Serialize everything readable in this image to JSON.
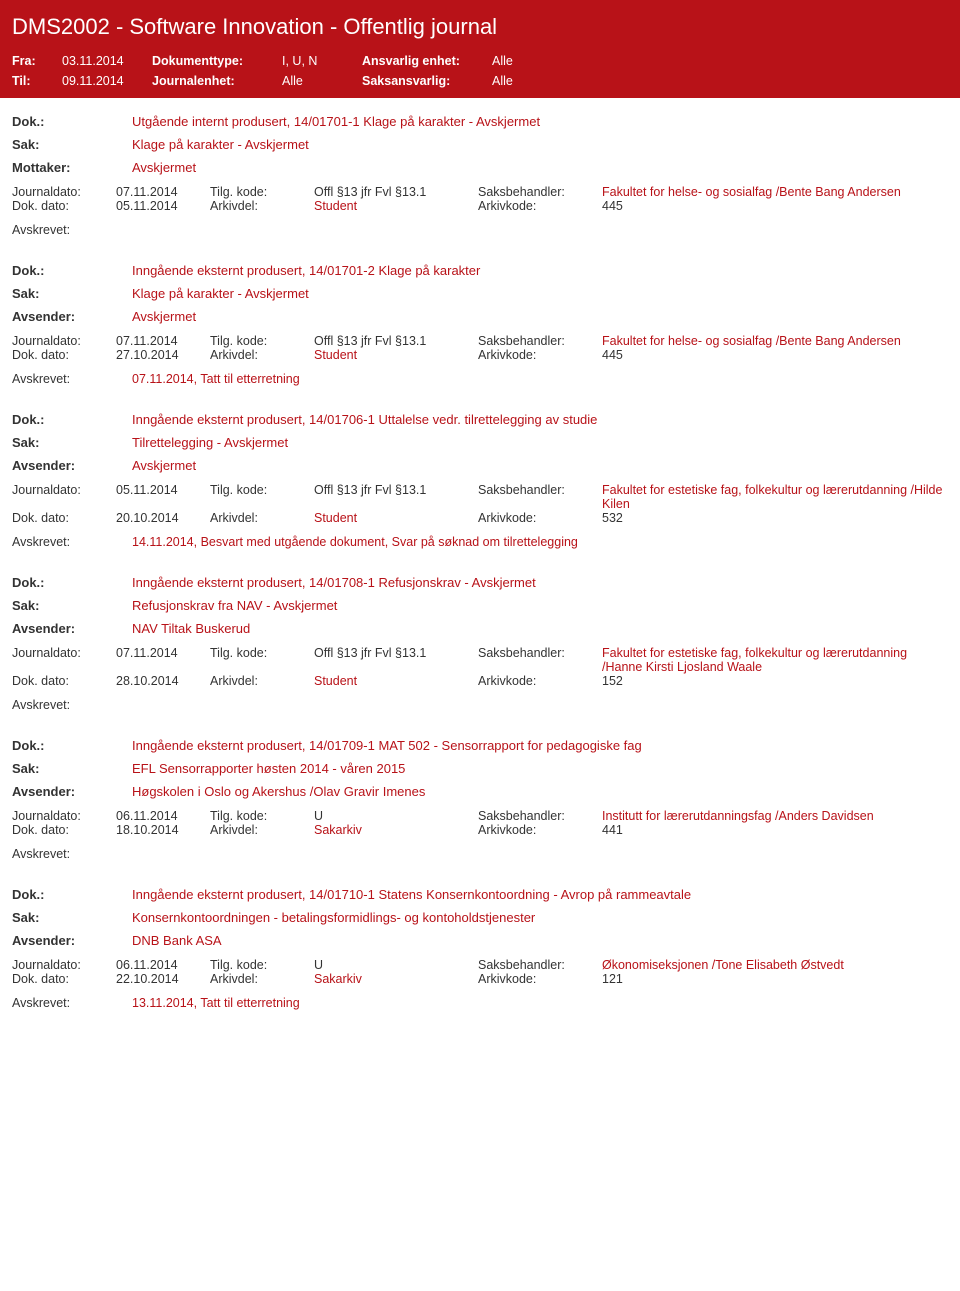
{
  "header": {
    "title": "DMS2002 - Software Innovation - Offentlig journal",
    "fra_label": "Fra:",
    "fra_val": "03.11.2014",
    "til_label": "Til:",
    "til_val": "09.11.2014",
    "doktype_label": "Dokumenttype:",
    "doktype_val": "I, U, N",
    "journalenhet_label": "Journalenhet:",
    "journalenhet_val": "Alle",
    "ansvarlig_label": "Ansvarlig enhet:",
    "ansvarlig_val": "Alle",
    "saksansvarlig_label": "Saksansvarlig:",
    "saksansvarlig_val": "Alle"
  },
  "labels": {
    "dok": "Dok.:",
    "sak": "Sak:",
    "mottaker": "Mottaker:",
    "avsender": "Avsender:",
    "journaldato": "Journaldato:",
    "dokdato": "Dok. dato:",
    "tilgkode": "Tilg. kode:",
    "arkivdel": "Arkivdel:",
    "saksbehandler": "Saksbehandler:",
    "arkivkode": "Arkivkode:",
    "avskrevet": "Avskrevet:"
  },
  "entries": [
    {
      "dok": "Utgående internt produsert, 14/01701-1 Klage på karakter - Avskjermet",
      "sak": "Klage på karakter - Avskjermet",
      "party_label": "Mottaker:",
      "party": "Avskjermet",
      "journaldato": "07.11.2014",
      "tilgkode": "Offl §13 jfr Fvl §13.1",
      "saksbehandler": "Fakultet for helse- og sosialfag /Bente Bang Andersen",
      "dokdato": "05.11.2014",
      "arkivdel": "Student",
      "arkivkode": "445",
      "avskrevet": ""
    },
    {
      "dok": "Inngående eksternt produsert, 14/01701-2 Klage på karakter",
      "sak": "Klage på karakter - Avskjermet",
      "party_label": "Avsender:",
      "party": "Avskjermet",
      "journaldato": "07.11.2014",
      "tilgkode": "Offl §13 jfr Fvl §13.1",
      "saksbehandler": "Fakultet for helse- og sosialfag /Bente Bang Andersen",
      "dokdato": "27.10.2014",
      "arkivdel": "Student",
      "arkivkode": "445",
      "avskrevet": "07.11.2014, Tatt til etterretning"
    },
    {
      "dok": "Inngående eksternt produsert, 14/01706-1 Uttalelse vedr. tilrettelegging av studie",
      "sak": "Tilrettelegging - Avskjermet",
      "party_label": "Avsender:",
      "party": "Avskjermet",
      "journaldato": "05.11.2014",
      "tilgkode": "Offl §13 jfr Fvl §13.1",
      "saksbehandler": "Fakultet for estetiske fag, folkekultur og lærerutdanning /Hilde Kilen",
      "dokdato": "20.10.2014",
      "arkivdel": "Student",
      "arkivkode": "532",
      "avskrevet": "14.11.2014, Besvart med utgående dokument, Svar på søknad om tilrettelegging"
    },
    {
      "dok": "Inngående eksternt produsert, 14/01708-1 Refusjonskrav - Avskjermet",
      "sak": "Refusjonskrav fra NAV - Avskjermet",
      "party_label": "Avsender:",
      "party": "NAV Tiltak Buskerud",
      "journaldato": "07.11.2014",
      "tilgkode": "Offl §13 jfr Fvl §13.1",
      "saksbehandler": "Fakultet for estetiske fag, folkekultur og lærerutdanning /Hanne Kirsti Ljosland Waale",
      "dokdato": "28.10.2014",
      "arkivdel": "Student",
      "arkivkode": "152",
      "avskrevet": ""
    },
    {
      "dok": "Inngående eksternt produsert, 14/01709-1 MAT 502 - Sensorrapport for pedagogiske fag",
      "sak": "EFL Sensorrapporter høsten 2014 - våren 2015",
      "party_label": "Avsender:",
      "party": "Høgskolen i Oslo og Akershus /Olav Gravir Imenes",
      "journaldato": "06.11.2014",
      "tilgkode": "U",
      "saksbehandler": "Institutt for lærerutdanningsfag /Anders Davidsen",
      "dokdato": "18.10.2014",
      "arkivdel": "Sakarkiv",
      "arkivkode": "441",
      "avskrevet": ""
    },
    {
      "dok": "Inngående eksternt produsert, 14/01710-1 Statens Konsernkontoordning - Avrop på rammeavtale",
      "sak": "Konsernkontoordningen - betalingsformidlings- og kontoholdstjenester",
      "party_label": "Avsender:",
      "party": "DNB Bank ASA",
      "journaldato": "06.11.2014",
      "tilgkode": "U",
      "saksbehandler": "Økonomiseksjonen /Tone Elisabeth Østvedt",
      "dokdato": "22.10.2014",
      "arkivdel": "Sakarkiv",
      "arkivkode": "121",
      "avskrevet": "13.11.2014, Tatt til etterretning"
    }
  ]
}
